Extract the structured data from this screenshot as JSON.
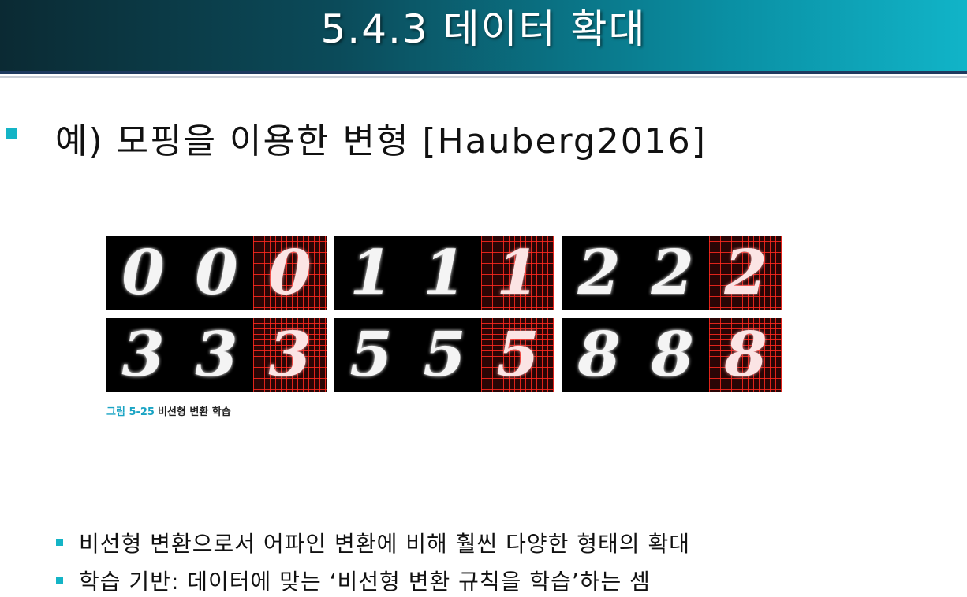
{
  "slide": {
    "title": "5.4.3 데이터 확대",
    "main_bullet": "예) 모핑을 이용한 변형 [Hauberg2016]",
    "figure": {
      "panels": [
        {
          "digit": "0"
        },
        {
          "digit": "1"
        },
        {
          "digit": "2"
        },
        {
          "digit": "3"
        },
        {
          "digit": "5"
        },
        {
          "digit": "8"
        }
      ],
      "caption_label": "그림 5-25",
      "caption_text": "비선형 변환 학습"
    },
    "sub_bullets": [
      "비선형 변환으로서 어파인 변환에 비해 훨씬 다양한 형태의 확대",
      "학습 기반: 데이터에 맞는 ‘비선형 변환 규칙을 학습’하는 셈"
    ]
  },
  "colors": {
    "title_gradient_start": "#0b2a33",
    "title_gradient_end": "#11b4c8",
    "bullet": "#14b4c6",
    "caption_label": "#1aa4c4"
  }
}
